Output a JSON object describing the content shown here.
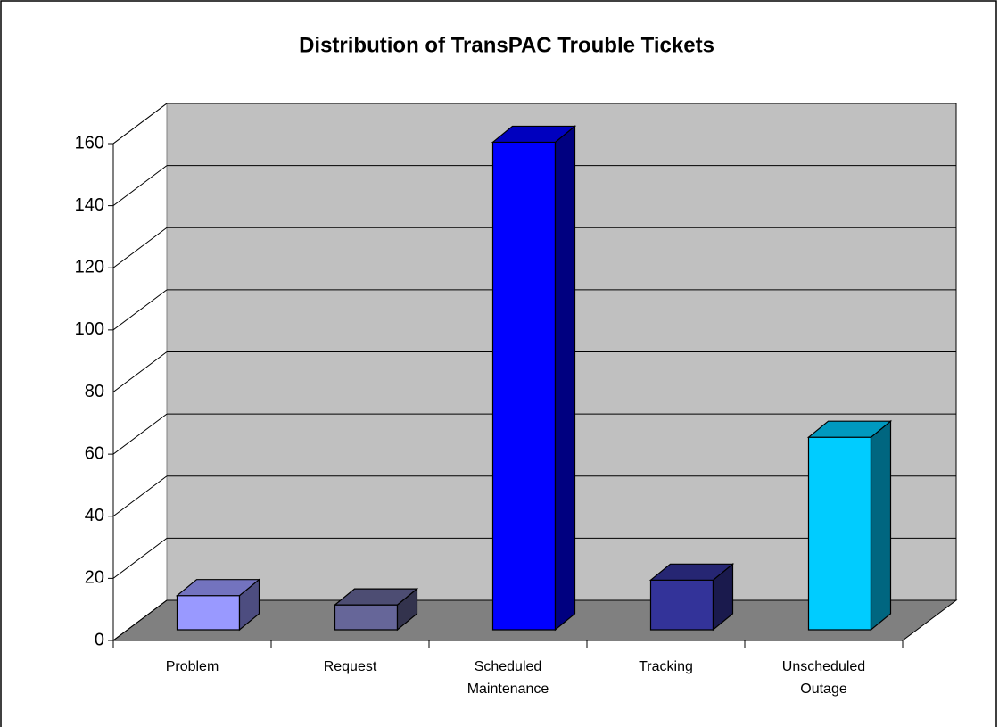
{
  "chart_data": {
    "type": "bar3d",
    "title": "Distribution of TransPAC Trouble Tickets",
    "categories": [
      "Problem",
      "Request",
      "Scheduled Maintenance",
      "Tracking",
      "Unscheduled Outage"
    ],
    "values": [
      11,
      8,
      157,
      16,
      62
    ],
    "colors": [
      "#9999ff",
      "#666699",
      "#0000ff",
      "#333399",
      "#00ccff"
    ],
    "ylim": [
      0,
      160
    ],
    "yticks": [
      0,
      20,
      40,
      60,
      80,
      100,
      120,
      140,
      160
    ],
    "grid": true
  }
}
